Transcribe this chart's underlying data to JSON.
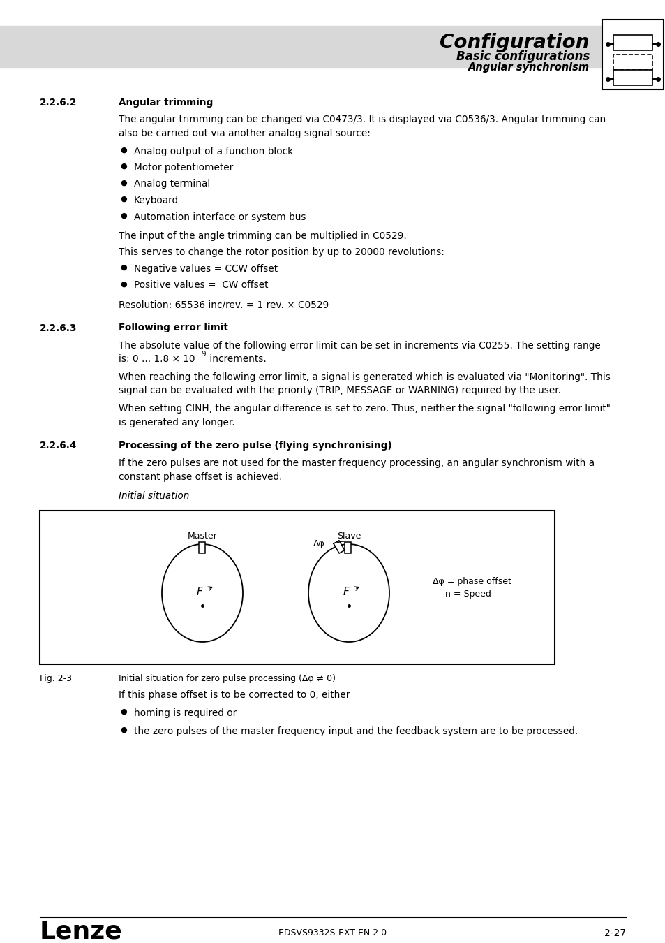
{
  "page_bg": "#ffffff",
  "header_bg": "#d8d8d8",
  "header_title": "Configuration",
  "header_sub1": "Basic configurations",
  "header_sub2": "Angular synchronism",
  "section_262": "2.2.6.2",
  "section_262_title": "Angular trimming",
  "section_262_text1a": "The angular trimming can be changed via C0473/3. It is displayed via C0536/3. Angular trimming can",
  "section_262_text1b": "also be carried out via another analog signal source:",
  "bullet_items_262": [
    "Analog output of a function block",
    "Motor potentiometer",
    "Analog terminal",
    "Keyboard",
    "Automation interface or system bus"
  ],
  "section_262_text2": "The input of the angle trimming can be multiplied in C0529.",
  "section_262_text3": "This serves to change the rotor position by up to 20000 revolutions:",
  "bullet_items_262b": [
    "Negative values = CCW offset",
    "Positive values =  CW offset"
  ],
  "section_262_text4": "Resolution: 65536 inc/rev. = 1 rev. × C0529",
  "section_263": "2.2.6.3",
  "section_263_title": "Following error limit",
  "section_263_text1a": "The absolute value of the following error limit can be set in increments via C0255. The setting range",
  "section_263_text1b": "is: 0 ... 1.8 × 10",
  "section_263_sup": "9",
  "section_263_text1c": " increments.",
  "section_263_text2a": "When reaching the following error limit, a signal is generated which is evaluated via \"Monitoring\". This",
  "section_263_text2b": "signal can be evaluated with the priority (TRIP, MESSAGE or WARNING) required by the user.",
  "section_263_text3a": "When setting CINH, the angular difference is set to zero. Thus, neither the signal \"following error limit\"",
  "section_263_text3b": "is generated any longer.",
  "section_264": "2.2.6.4",
  "section_264_title": "Processing of the zero pulse (flying synchronising)",
  "section_264_text1a": "If the zero pulses are not used for the master frequency processing, an angular synchronism with a",
  "section_264_text1b": "constant phase offset is achieved.",
  "section_264_italic": "Initial situation",
  "fig_caption_label": "Fig. 2-3",
  "fig_caption_text": "Initial situation for zero pulse processing (Δφ ≠ 0)",
  "section_264_text2": "If this phase offset is to be corrected to 0, either",
  "bullet_items_264": [
    "homing is required or",
    "the zero pulses of the master frequency input and the feedback system are to be processed."
  ],
  "footer_logo": "Lenze",
  "footer_center": "EDSVS9332S-EXT EN 2.0",
  "footer_right": "2-27",
  "master_label": "Master",
  "slave_label": "Slave",
  "delta_phi_label": "Δφ",
  "legend_line1": "Δφ = phase offset",
  "legend_line2": "n = Speed"
}
